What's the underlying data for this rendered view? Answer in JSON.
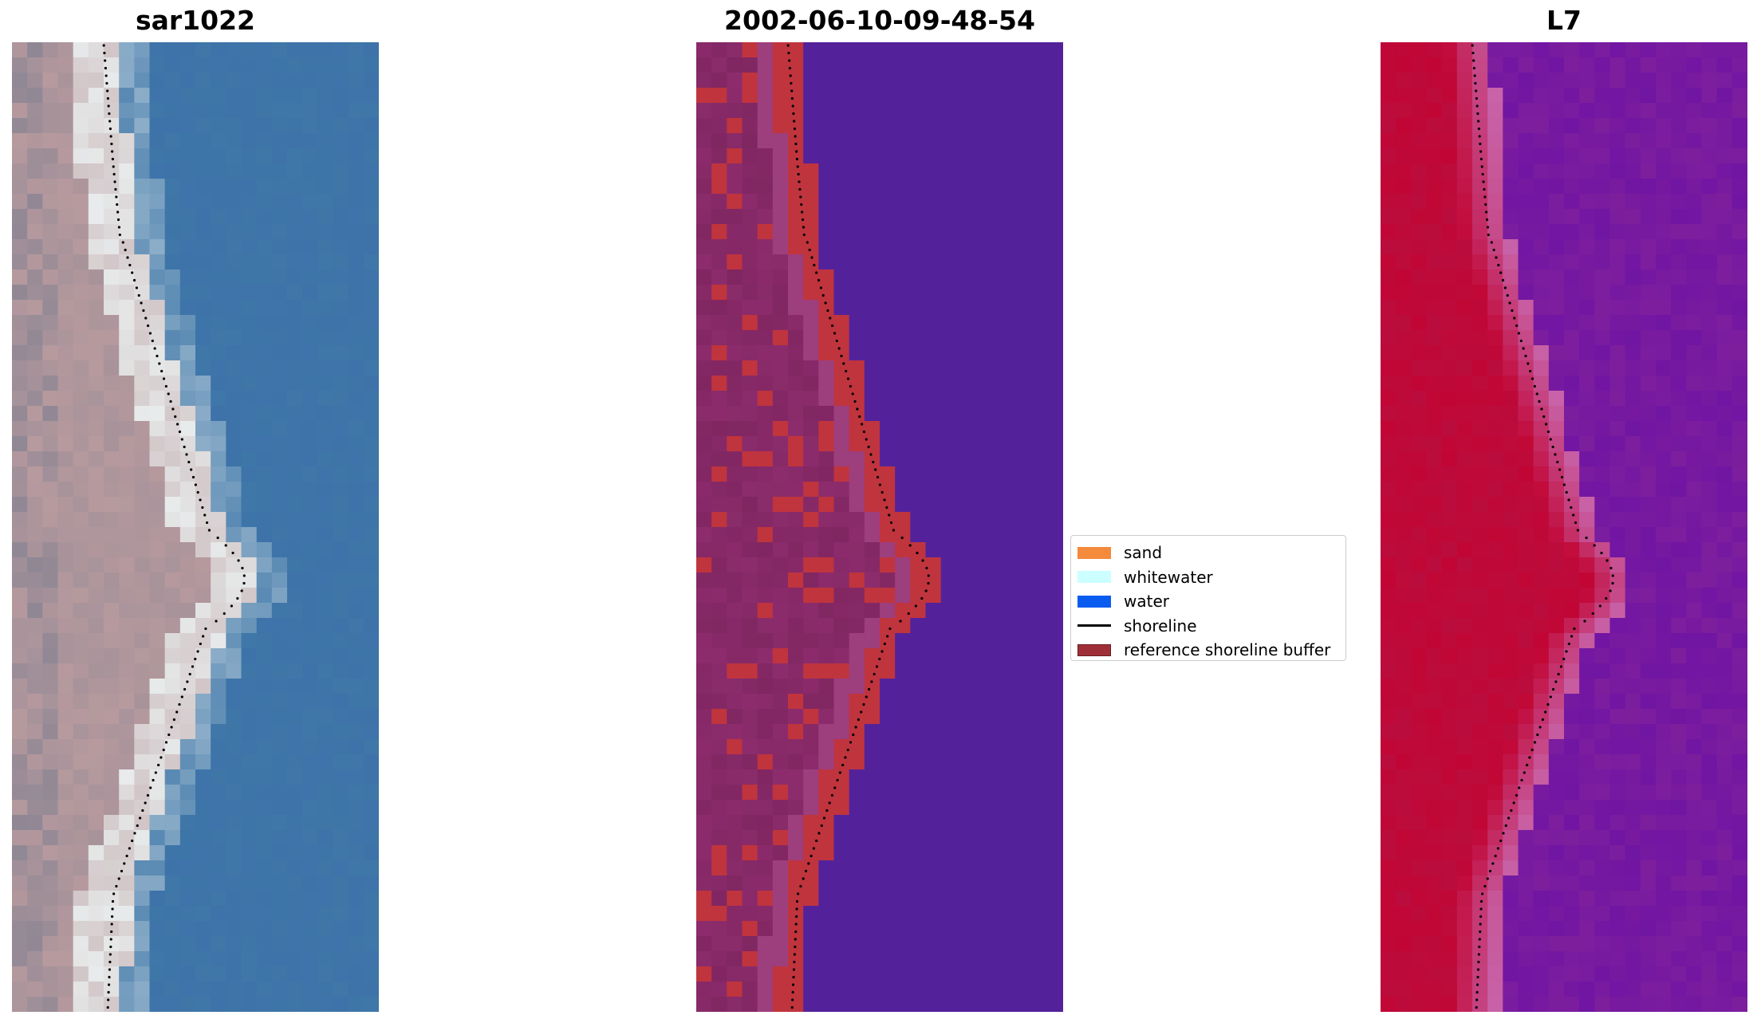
{
  "panels": {
    "left_title": "sar1022",
    "middle_title": "2002-06-10-09-48-54",
    "right_title": "L7"
  },
  "legend": {
    "items": [
      {
        "label": "sand",
        "color": "#f48a3c",
        "kind": "patch"
      },
      {
        "label": "whitewater",
        "color": "#ccffff",
        "kind": "patch"
      },
      {
        "label": "water",
        "color": "#0a5cf0",
        "kind": "patch"
      },
      {
        "label": "shoreline",
        "color": "#000000",
        "kind": "line"
      },
      {
        "label": "reference shoreline buffer",
        "color": "#9e2f38",
        "kind": "patch"
      }
    ]
  },
  "colors": {
    "sar_land": "#b79a9e",
    "sar_water": "#3f77a8",
    "class_water": "#53229a",
    "class_land": "#8d2c6d",
    "class_buffer": "#c0343e",
    "index_land": "#c10635",
    "index_water": "#7d1f9d"
  }
}
